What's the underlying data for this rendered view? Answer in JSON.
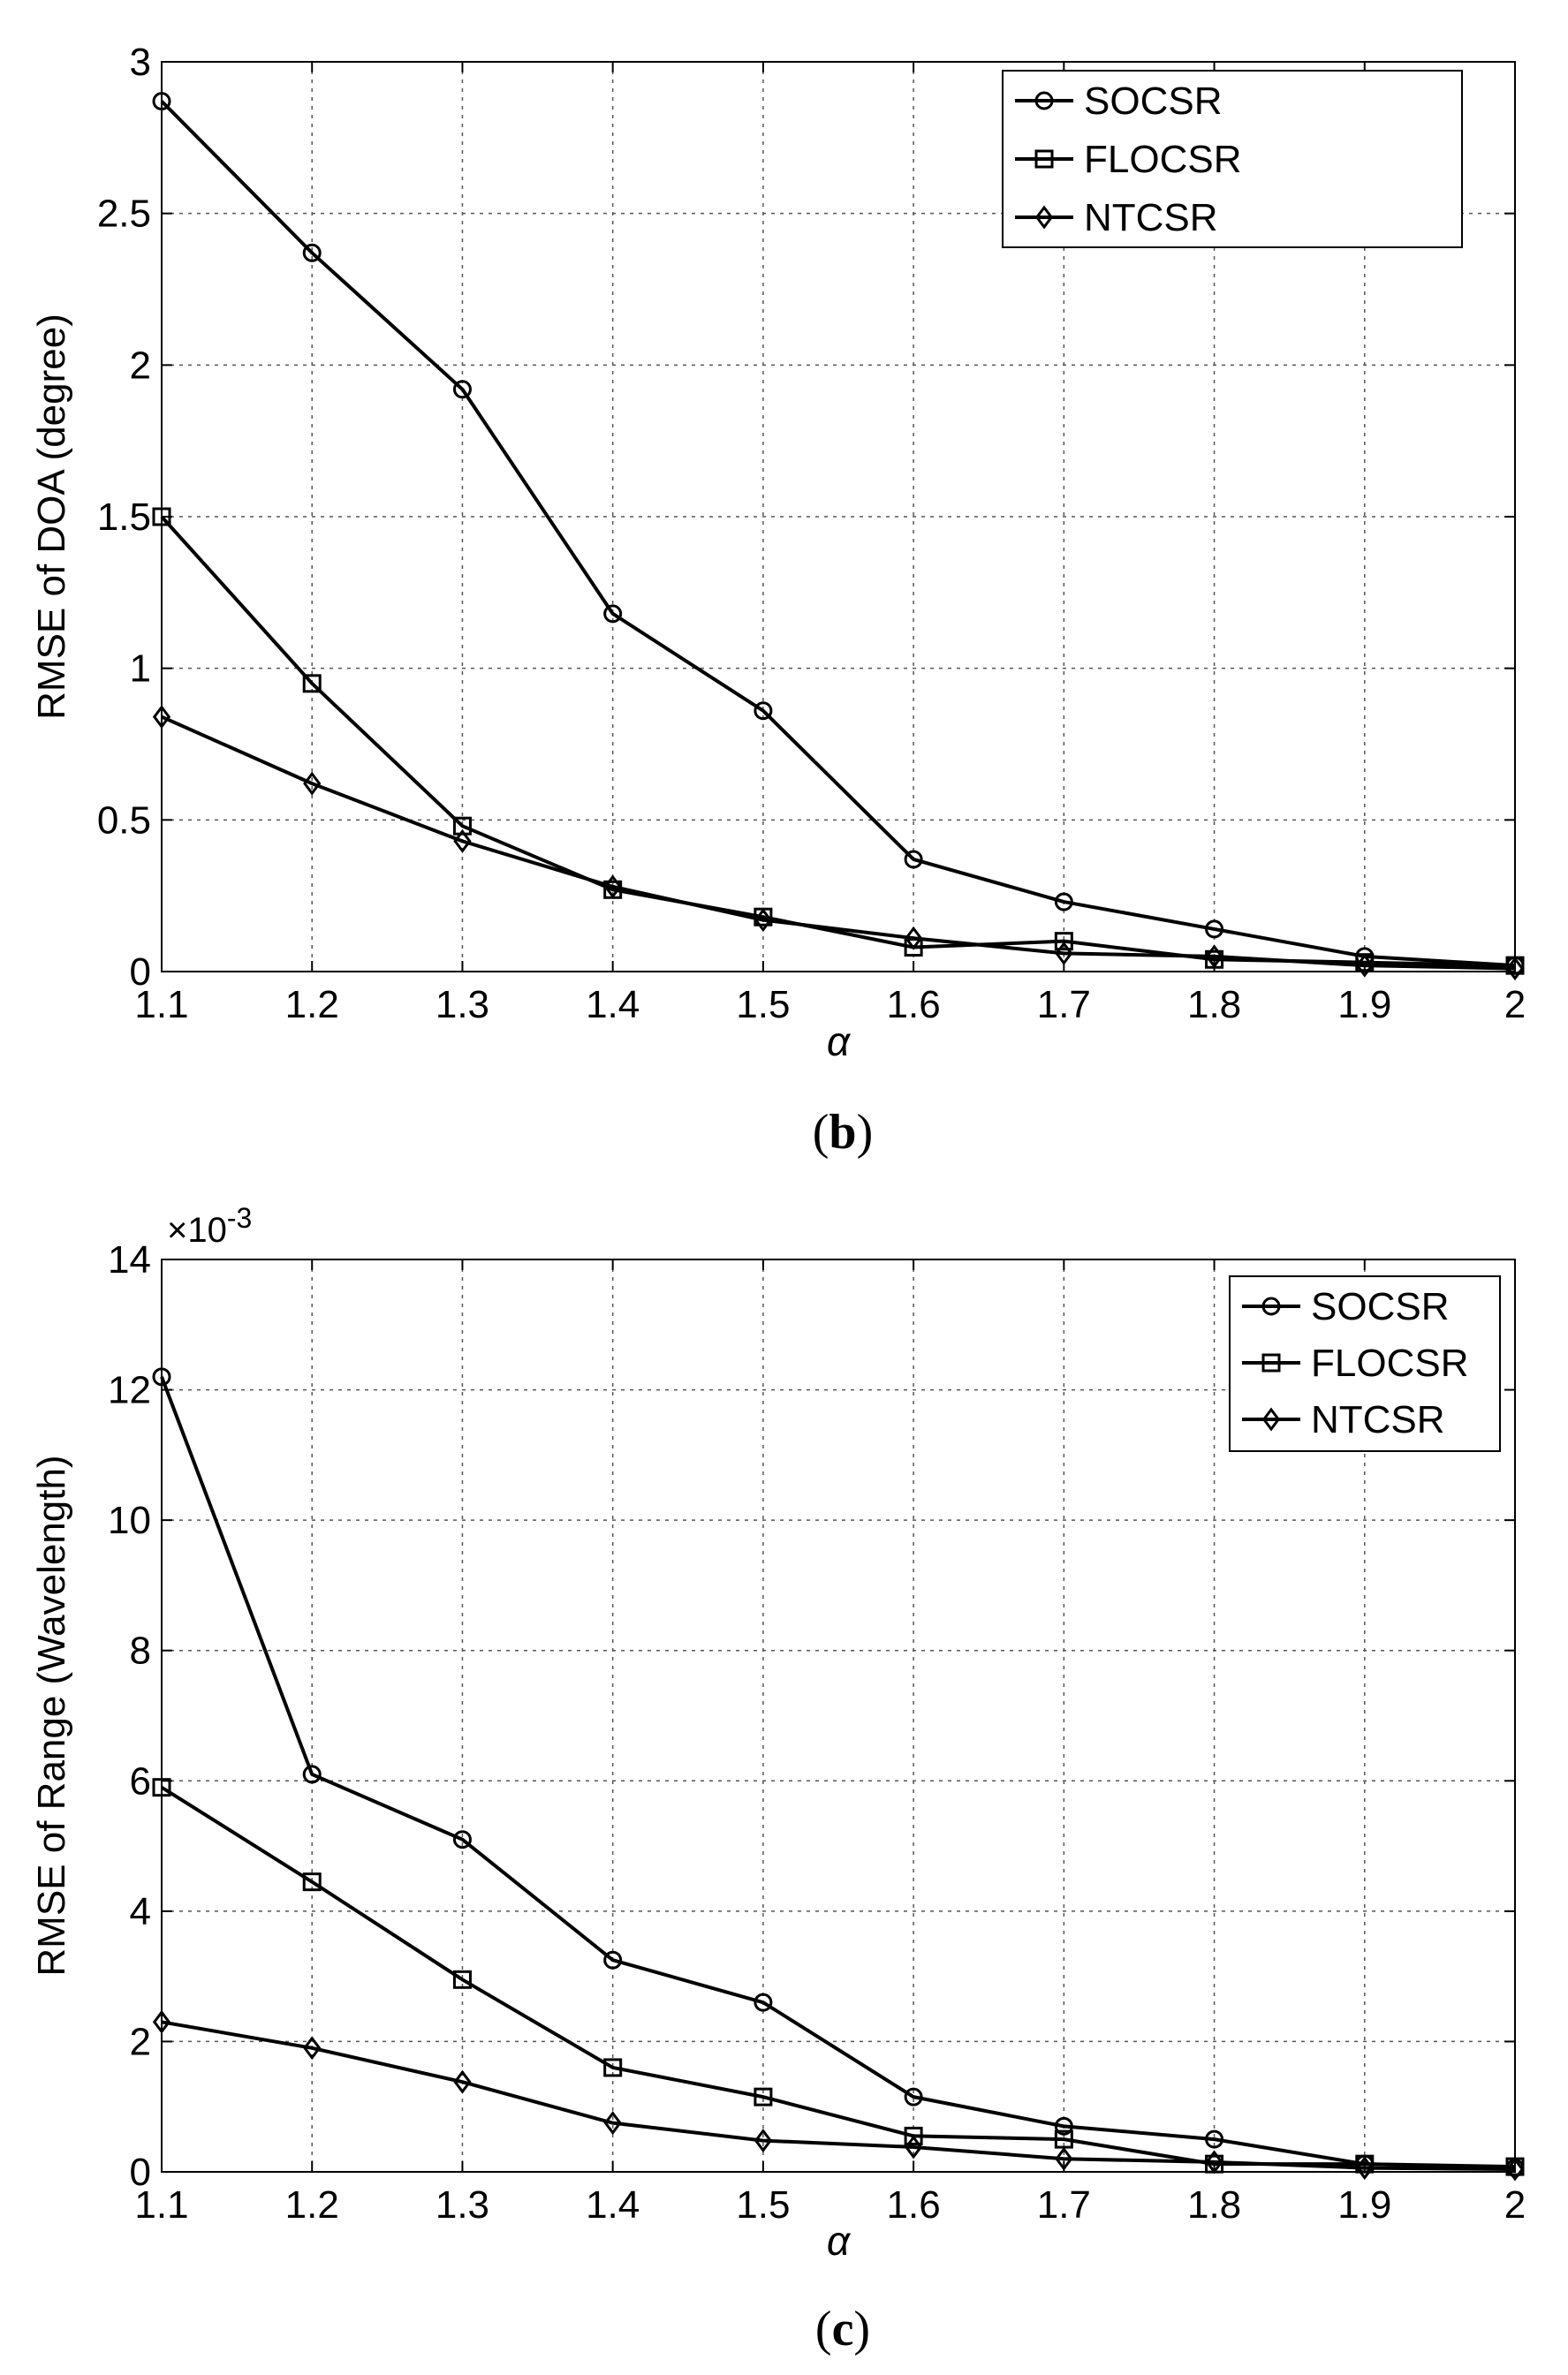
{
  "chart_data": [
    {
      "id": "b",
      "type": "line",
      "caption": "b",
      "title": "",
      "xlabel": "α",
      "ylabel": "RMSE of DOA (degree)",
      "exponent_label": "",
      "x": [
        1.1,
        1.2,
        1.3,
        1.4,
        1.5,
        1.6,
        1.7,
        1.8,
        1.9,
        2.0
      ],
      "xlim": [
        1.1,
        2.0
      ],
      "ylim": [
        0,
        3
      ],
      "xticks": [
        1.1,
        1.2,
        1.3,
        1.4,
        1.5,
        1.6,
        1.7,
        1.8,
        1.9,
        2.0
      ],
      "xtick_labels": [
        "1.1",
        "1.2",
        "1.3",
        "1.4",
        "1.5",
        "1.6",
        "1.7",
        "1.8",
        "1.9",
        "2"
      ],
      "yticks": [
        0,
        0.5,
        1,
        1.5,
        2,
        2.5,
        3
      ],
      "ytick_labels": [
        "0",
        "0.5",
        "1",
        "1.5",
        "2",
        "2.5",
        "3"
      ],
      "grid": true,
      "legend_position": "top-right",
      "series": [
        {
          "name": "SOCSR",
          "marker": "circle",
          "values": [
            2.87,
            2.37,
            1.92,
            1.18,
            0.86,
            0.37,
            0.23,
            0.14,
            0.05,
            0.02
          ]
        },
        {
          "name": "FLOCSR",
          "marker": "square",
          "values": [
            1.5,
            0.95,
            0.48,
            0.27,
            0.18,
            0.08,
            0.1,
            0.04,
            0.03,
            0.02
          ]
        },
        {
          "name": "NTCSR",
          "marker": "diamond",
          "values": [
            0.84,
            0.62,
            0.43,
            0.28,
            0.17,
            0.11,
            0.06,
            0.05,
            0.02,
            0.01
          ]
        }
      ]
    },
    {
      "id": "c",
      "type": "line",
      "caption": "c",
      "title": "",
      "xlabel": "α",
      "ylabel": "RMSE of  Range (Wavelength)",
      "exponent_label": "×10",
      "exponent_power": "-3",
      "x": [
        1.1,
        1.2,
        1.3,
        1.4,
        1.5,
        1.6,
        1.7,
        1.8,
        1.9,
        2.0
      ],
      "xlim": [
        1.1,
        2.0
      ],
      "ylim": [
        0,
        14
      ],
      "xticks": [
        1.1,
        1.2,
        1.3,
        1.4,
        1.5,
        1.6,
        1.7,
        1.8,
        1.9,
        2.0
      ],
      "xtick_labels": [
        "1.1",
        "1.2",
        "1.3",
        "1.4",
        "1.5",
        "1.6",
        "1.7",
        "1.8",
        "1.9",
        "2"
      ],
      "yticks": [
        0,
        2,
        4,
        6,
        8,
        10,
        12,
        14
      ],
      "ytick_labels": [
        "0",
        "2",
        "4",
        "6",
        "8",
        "10",
        "12",
        "14"
      ],
      "grid": true,
      "legend_position": "top-right",
      "series": [
        {
          "name": "SOCSR",
          "marker": "circle",
          "values": [
            12.2,
            6.1,
            5.1,
            3.25,
            2.6,
            1.15,
            0.7,
            0.5,
            0.12,
            0.06
          ]
        },
        {
          "name": "FLOCSR",
          "marker": "square",
          "values": [
            5.9,
            4.45,
            2.95,
            1.6,
            1.15,
            0.55,
            0.5,
            0.12,
            0.12,
            0.08
          ]
        },
        {
          "name": "NTCSR",
          "marker": "diamond",
          "values": [
            2.3,
            1.9,
            1.38,
            0.75,
            0.48,
            0.38,
            0.2,
            0.15,
            0.06,
            0.04
          ]
        }
      ]
    }
  ]
}
